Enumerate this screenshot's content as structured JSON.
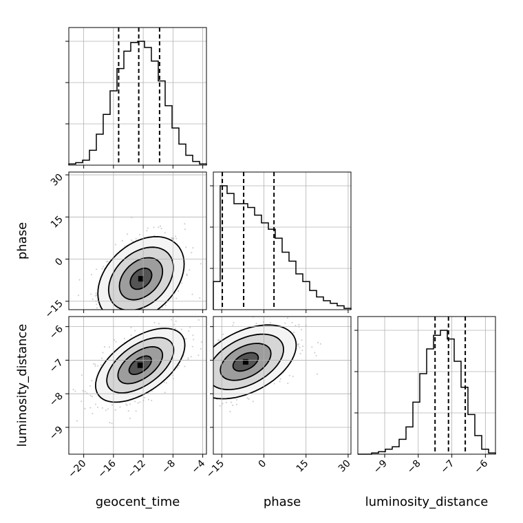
{
  "chart_data": {
    "type": "corner",
    "parameters": [
      "geocent_time",
      "phase",
      "luminosity_distance"
    ],
    "axis_labels": {
      "geocent_time": "geocent_time",
      "phase": "phase",
      "luminosity_distance": "luminosity_distance"
    },
    "ranges": {
      "geocent_time": [
        -22,
        -3.5
      ],
      "phase": [
        -18,
        31
      ],
      "luminosity_distance": [
        -9.8,
        -5.7
      ]
    },
    "ticks": {
      "geocent_time": [
        -20,
        -16,
        -12,
        -8,
        -4
      ],
      "phase": [
        -15,
        0,
        15,
        30
      ],
      "luminosity_distance": [
        -9,
        -8,
        -7,
        -6
      ]
    },
    "tick_labels": {
      "geocent_time": [
        "−20",
        "−16",
        "−12",
        "−8",
        "−4"
      ],
      "phase": [
        "−15",
        "0",
        "15",
        "30"
      ],
      "luminosity_distance": [
        "−9",
        "−8",
        "−7",
        "−6"
      ]
    },
    "grid": true,
    "histograms": {
      "geocent_time": {
        "edges": [
          -22,
          -21.075,
          -20.15,
          -19.225,
          -18.3,
          -17.375,
          -16.45,
          -15.525,
          -14.6,
          -13.675,
          -12.75,
          -11.825,
          -10.9,
          -9.975,
          -9.05,
          -8.125,
          -7.2,
          -6.275,
          -5.35,
          -4.425,
          -3.5
        ],
        "counts": [
          0.01,
          0.02,
          0.04,
          0.12,
          0.25,
          0.41,
          0.6,
          0.78,
          0.92,
          0.99,
          1.0,
          0.95,
          0.84,
          0.68,
          0.48,
          0.3,
          0.17,
          0.08,
          0.03,
          0.01
        ],
        "quantiles": [
          -15.3,
          -12.6,
          -9.8
        ]
      },
      "phase": {
        "edges": [
          -18,
          -15.55,
          -13.1,
          -10.65,
          -8.2,
          -5.75,
          -3.3,
          -0.85,
          1.6,
          4.05,
          6.5,
          8.95,
          11.4,
          13.85,
          16.3,
          18.75,
          21.2,
          23.65,
          26.1,
          28.55,
          31
        ],
        "counts": [
          0.22,
          0.97,
          0.91,
          0.83,
          0.83,
          0.8,
          0.74,
          0.68,
          0.63,
          0.56,
          0.45,
          0.38,
          0.28,
          0.22,
          0.15,
          0.1,
          0.07,
          0.05,
          0.03,
          0.01
        ],
        "quantiles": [
          -14.8,
          -7.2,
          3.6
        ]
      },
      "luminosity_distance": {
        "edges": [
          -9.8,
          -9.595,
          -9.39,
          -9.185,
          -8.98,
          -8.775,
          -8.57,
          -8.365,
          -8.16,
          -7.955,
          -7.75,
          -7.545,
          -7.34,
          -7.135,
          -6.93,
          -6.725,
          -6.52,
          -6.315,
          -6.11,
          -5.905,
          -5.7
        ],
        "counts": [
          0.0,
          0.0,
          0.01,
          0.02,
          0.04,
          0.06,
          0.12,
          0.22,
          0.42,
          0.65,
          0.85,
          0.96,
          1.0,
          0.93,
          0.75,
          0.54,
          0.32,
          0.15,
          0.04,
          0.01
        ],
        "quantiles": [
          -7.5,
          -7.1,
          -6.6
        ]
      }
    },
    "joint": [
      {
        "x": "geocent_time",
        "y": "phase",
        "center": [
          -12.3,
          -7.0
        ],
        "sigma": [
          2.9,
          7.5
        ],
        "rho": 0.35,
        "contour_levels": [
          0.5,
          1.0,
          1.5,
          2.0
        ]
      },
      {
        "x": "geocent_time",
        "y": "luminosity_distance",
        "center": [
          -12.4,
          -7.15
        ],
        "sigma": [
          3.0,
          0.55
        ],
        "rho": 0.55,
        "contour_levels": [
          0.5,
          1.0,
          1.5,
          2.0
        ]
      },
      {
        "x": "phase",
        "y": "luminosity_distance",
        "center": [
          -6.5,
          -7.05
        ],
        "sigma": [
          9.0,
          0.55
        ],
        "rho": 0.45,
        "contour_levels": [
          0.5,
          1.0,
          1.5,
          2.0
        ]
      }
    ],
    "colors": {
      "line": "#000000",
      "points": "#9a9a9a",
      "grid": "#b0b0b0"
    }
  }
}
